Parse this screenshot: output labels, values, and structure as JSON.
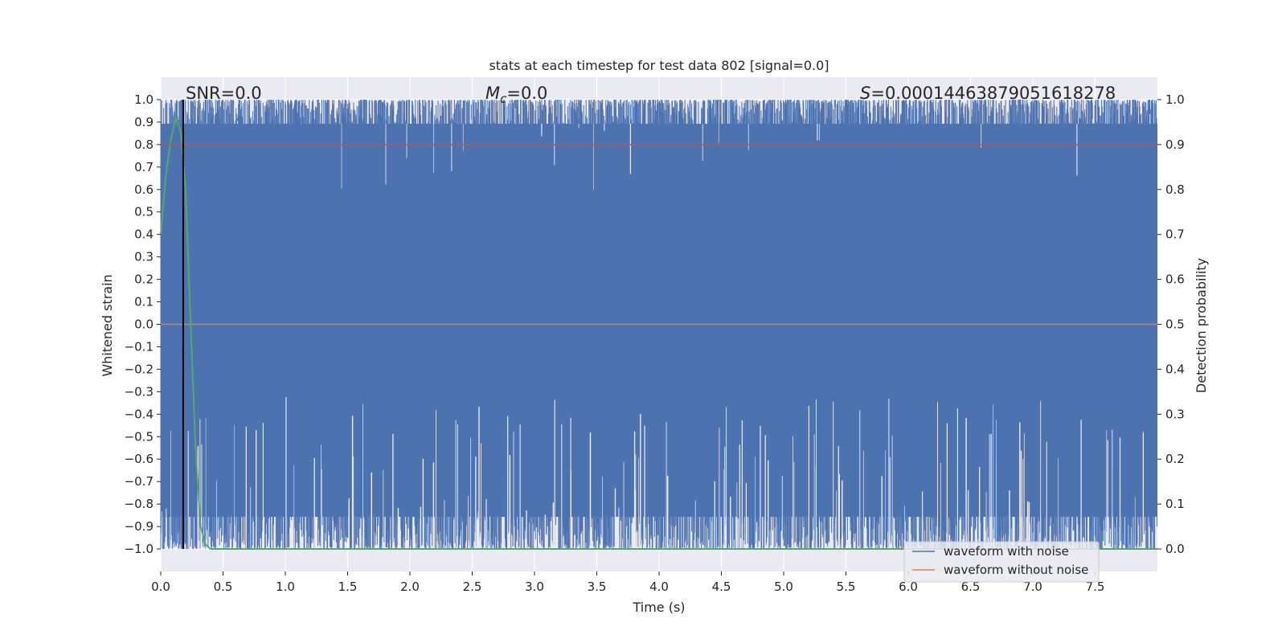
{
  "chart_data": {
    "type": "line",
    "title": "stats at each timestep for test data 802 [signal=0.0]",
    "xlabel": "Time (s)",
    "ylabel": "Whitened strain",
    "ylabel_right": "Detection probability",
    "xlim": [
      0.0,
      8.0
    ],
    "ylim": [
      -1.1,
      1.1
    ],
    "ylim_right": [
      -0.05,
      1.05
    ],
    "x_ticks": [
      0.0,
      0.5,
      1.0,
      1.5,
      2.0,
      2.5,
      3.0,
      3.5,
      4.0,
      4.5,
      5.0,
      5.5,
      6.0,
      6.5,
      7.0,
      7.5
    ],
    "x_tick_labels": [
      "0.0",
      "0.5",
      "1.0",
      "1.5",
      "2.0",
      "2.5",
      "3.0",
      "3.5",
      "4.0",
      "4.5",
      "5.0",
      "5.5",
      "6.0",
      "6.5",
      "7.0",
      "7.5"
    ],
    "y_ticks": [
      1.0,
      0.9,
      0.8,
      0.7,
      0.6,
      0.5,
      0.4,
      0.3,
      0.2,
      0.1,
      0.0,
      -0.1,
      -0.2,
      -0.3,
      -0.4,
      -0.5,
      -0.6,
      -0.7,
      -0.8,
      -0.9,
      -1.0
    ],
    "y_tick_labels": [
      "1.0",
      "0.9",
      "0.8",
      "0.7",
      "0.6",
      "0.5",
      "0.4",
      "0.3",
      "0.2",
      "0.1",
      "0.0",
      "−0.1",
      "−0.2",
      "−0.3",
      "−0.4",
      "−0.5",
      "−0.6",
      "−0.7",
      "−0.8",
      "−0.9",
      "−1.0"
    ],
    "y_ticks_right": [
      1.0,
      0.9,
      0.8,
      0.7,
      0.6,
      0.5,
      0.4,
      0.3,
      0.2,
      0.1,
      0.0
    ],
    "y_tick_labels_right": [
      "1.0",
      "0.9",
      "0.8",
      "0.7",
      "0.6",
      "0.5",
      "0.4",
      "0.3",
      "0.2",
      "0.1",
      "0.0"
    ],
    "annotations": {
      "snr": "SNR=0.0",
      "mc": "M_c=0.0",
      "s": "S=0.00014463879051618278"
    },
    "series": [
      {
        "name": "waveform with noise",
        "color": "#4c72b0",
        "kind": "dense-noise",
        "y_range": [
          -1.0,
          1.0
        ]
      },
      {
        "name": "waveform without noise",
        "color": "#dd8452",
        "x": [
          0.0,
          8.0
        ],
        "y": [
          0.0,
          0.0
        ]
      },
      {
        "color": "#55a868",
        "axis": "right",
        "x": [
          0.0,
          0.04,
          0.08,
          0.12,
          0.16,
          0.2,
          0.24,
          0.28,
          0.32,
          0.36,
          0.4,
          8.0
        ],
        "y": [
          0.7,
          0.83,
          0.91,
          0.96,
          0.93,
          0.8,
          0.5,
          0.22,
          0.05,
          0.01,
          0.0,
          0.0
        ]
      },
      {
        "color": "#c44e52",
        "axis": "right",
        "x": [
          0.0,
          8.0
        ],
        "y": [
          0.9,
          0.9
        ]
      },
      {
        "color": "#000000",
        "kind": "vline",
        "x": 0.18,
        "y": [
          -1.0,
          1.0
        ]
      }
    ],
    "legend": {
      "placement": "lower-right",
      "entries": [
        "waveform with noise",
        "waveform without noise"
      ]
    },
    "grid": true,
    "background": "#eaeaf2"
  }
}
